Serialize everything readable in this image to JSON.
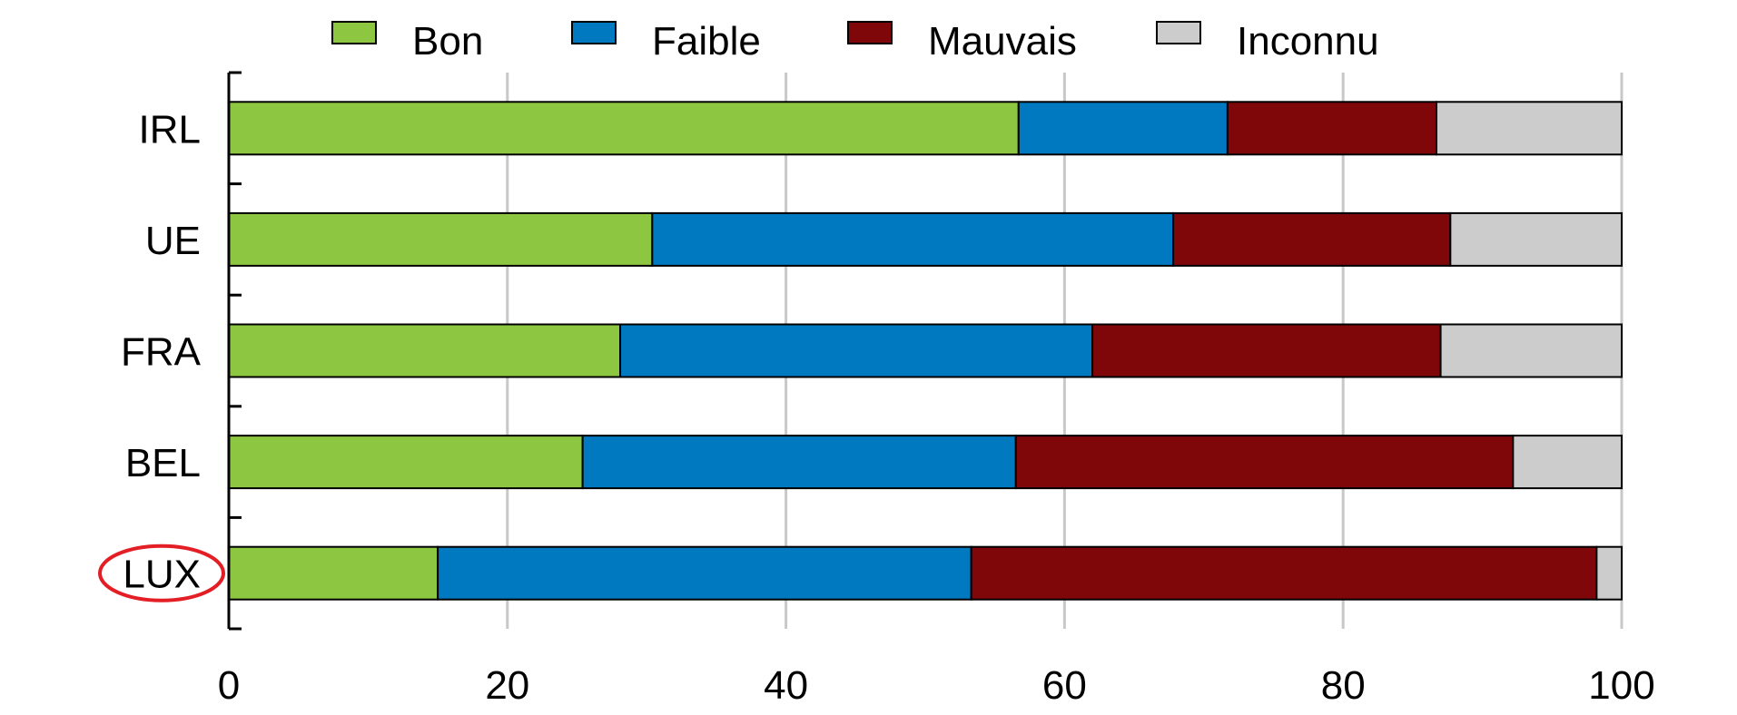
{
  "chart_data": {
    "type": "bar",
    "orientation": "horizontal",
    "stacked": true,
    "categories": [
      "IRL",
      "UE",
      "FRA",
      "BEL",
      "LUX"
    ],
    "series": [
      {
        "name": "Bon",
        "color": "#8dc641",
        "values": [
          56.7,
          30.4,
          28.1,
          25.4,
          15.0
        ]
      },
      {
        "name": "Faible",
        "color": "#0079c0",
        "values": [
          15.0,
          37.4,
          33.9,
          31.1,
          38.3
        ]
      },
      {
        "name": "Mauvais",
        "color": "#7f0609",
        "values": [
          15.0,
          19.9,
          25.0,
          35.7,
          44.9
        ]
      },
      {
        "name": "Inconnu",
        "color": "#cccccc",
        "values": [
          13.3,
          12.3,
          13.0,
          7.8,
          1.8
        ]
      }
    ],
    "xlim": [
      0,
      100
    ],
    "xticks": [
      0,
      20,
      40,
      60,
      80,
      100
    ],
    "grid": true,
    "legend_position": "top",
    "highlighted_category": "LUX",
    "highlight_color": "#e31e24"
  }
}
